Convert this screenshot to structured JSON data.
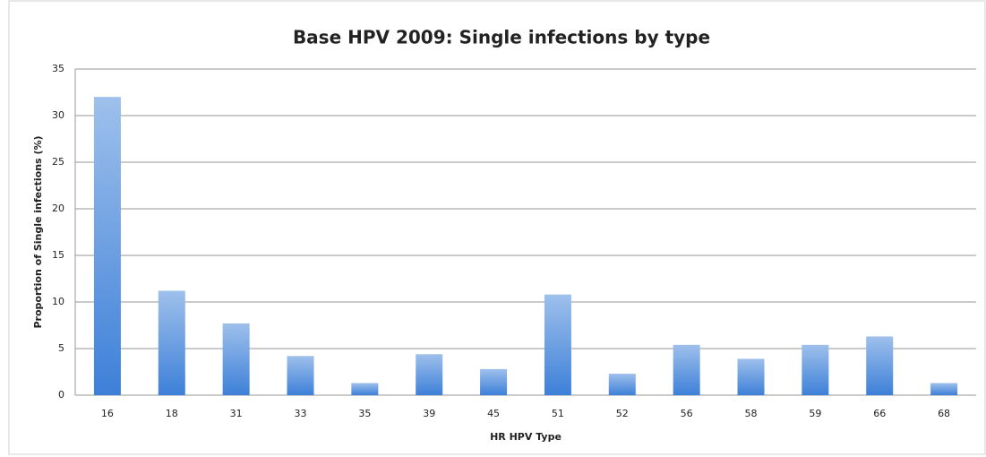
{
  "chart_data": {
    "type": "bar",
    "title": "Base HPV 2009: Single infections by type",
    "x_label": "HR HPV Type",
    "y_label": "Proportion of Single infections (%)",
    "categories": [
      "16",
      "18",
      "31",
      "33",
      "35",
      "39",
      "45",
      "51",
      "52",
      "56",
      "58",
      "59",
      "66",
      "68"
    ],
    "values": [
      32.0,
      11.2,
      7.7,
      4.2,
      1.3,
      4.4,
      2.8,
      10.8,
      2.3,
      5.4,
      3.9,
      5.4,
      6.3,
      1.3
    ],
    "color": "#3d80d8",
    "ylim": [
      0,
      35
    ],
    "yticks": [
      0,
      5,
      10,
      15,
      20,
      25,
      30,
      35
    ],
    "grid": true
  }
}
